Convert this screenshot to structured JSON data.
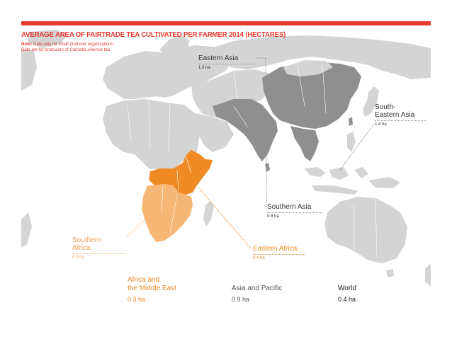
{
  "title": "AVERAGE AREA OF FAIRTRADE TEA CULTIVATED PER FARMER 2014 (HECTARES)",
  "note": {
    "label": "Note:",
    "line1": "Data only for small producer organizations.",
    "line2_prefix": "Data are for producers of ",
    "line2_species": "Camellia sinensis",
    "line2_suffix": " tea."
  },
  "colors": {
    "accent": "#e63a30",
    "eastern_africa": "#f08a24",
    "southern_africa": "#f6b676",
    "asia_producers": "#8f8f8f",
    "other_land": "#d4d4d4",
    "ocean": "#ffffff"
  },
  "regions": {
    "eastern_asia": {
      "name": "Eastern Asia",
      "value": "1.0 ha"
    },
    "south_eastern_asia": {
      "name_line1": "South-",
      "name_line2": "Eastern Asia",
      "value": "1.4 ha"
    },
    "southern_asia": {
      "name": "Southern Asia",
      "value": "0.8 ha"
    },
    "southern_africa": {
      "name_line1": "Southern",
      "name_line2": "Africa",
      "value": "0.3 ha"
    },
    "eastern_africa": {
      "name": "Eastern Africa",
      "value": "0.4 ha"
    }
  },
  "legend": {
    "africa": {
      "name_line1": "Africa and",
      "name_line2": "the Middle East",
      "value": "0.3 ha"
    },
    "asia": {
      "name": "Asia and Pacific",
      "value": "0.9 ha"
    },
    "world": {
      "name": "World",
      "value": "0.4 ha"
    }
  }
}
